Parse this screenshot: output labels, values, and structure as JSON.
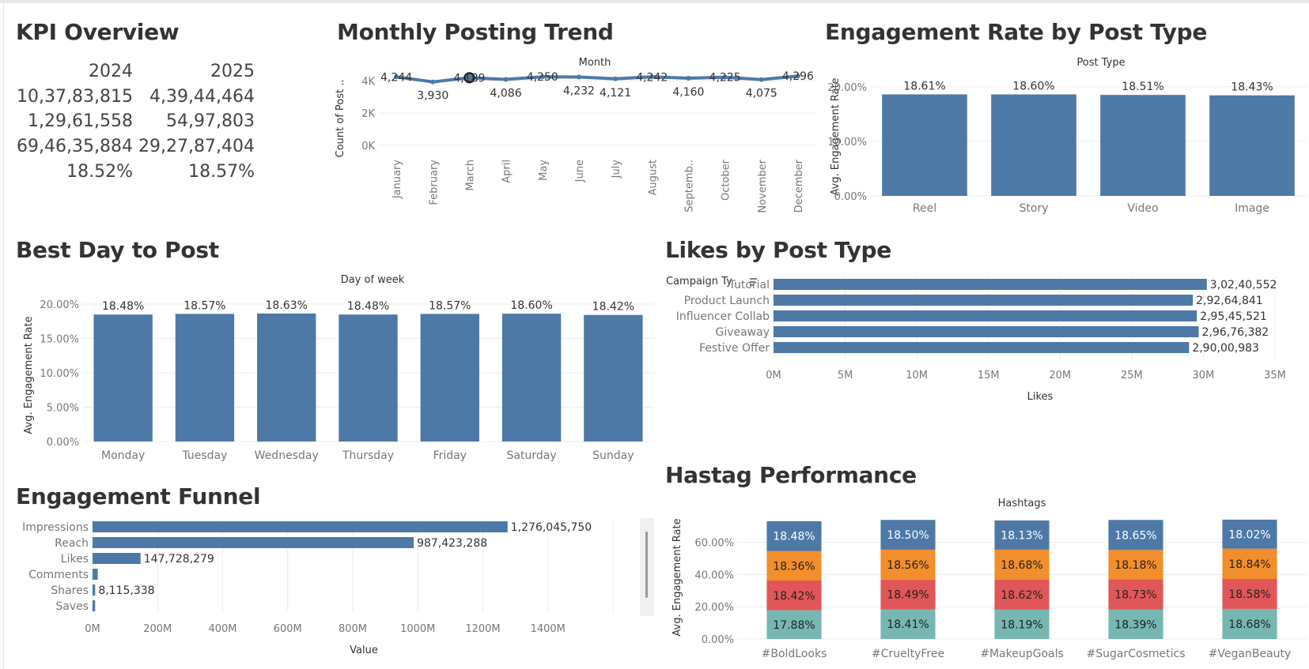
{
  "titles": {
    "kpi": "KPI Overview",
    "monthly": "Monthly Posting Trend",
    "engagement_post_type": "Engagement Rate by Post Type",
    "best_day": "Best Day to Post",
    "likes_post_type": "Likes by Post Type",
    "funnel": "Engagement Funnel",
    "hashtag": "Hastag Performance"
  },
  "kpi": {
    "years": [
      "2024",
      "2025"
    ],
    "rows": [
      [
        "10,37,83,815",
        "4,39,44,464"
      ],
      [
        "1,29,61,558",
        "54,97,803"
      ],
      [
        "69,46,35,884",
        "29,27,87,404"
      ],
      [
        "18.52%",
        "18.57%"
      ]
    ]
  },
  "colors": {
    "bar": "#4e79a7",
    "blue": "#4e79a7",
    "orange": "#f28e2b",
    "red": "#e15759",
    "teal": "#76b7b2",
    "grid": "#ececec",
    "axis_text": "#777777"
  },
  "chart_data": [
    {
      "id": "monthly",
      "type": "line",
      "xlabel_top": "Month",
      "ylabel": "Count of Post ..",
      "categories": [
        "January",
        "February",
        "March",
        "April",
        "May",
        "June",
        "July",
        "August",
        "Septemb..",
        "October",
        "November",
        "December"
      ],
      "values": [
        4244,
        3930,
        4189,
        4086,
        4250,
        4232,
        4121,
        4242,
        4160,
        4225,
        4075,
        4296
      ],
      "labels": [
        "4,244",
        "3,930",
        "4,189",
        "4,086",
        "4,250",
        "4,232",
        "4,121",
        "4,242",
        "4,160",
        "4,225",
        "4,075",
        "4,296"
      ],
      "label_display": [
        "4,244",
        "3,930",
        "4,1‌89",
        "4,086",
        "4,250",
        "4,232",
        "4,121",
        "4,242",
        "4,160",
        "4,225",
        "4,075",
        "4,296"
      ],
      "yticks": [
        "0K",
        "2K",
        "4K"
      ],
      "ylim": [
        0,
        4600
      ],
      "highlight_index": 2
    },
    {
      "id": "engagement_post_type",
      "type": "bar",
      "xlabel_top": "Post Type",
      "ylabel": "Avg. Engagement Rate",
      "categories": [
        "Reel",
        "Story",
        "Video",
        "Image"
      ],
      "values": [
        18.61,
        18.6,
        18.51,
        18.43
      ],
      "labels": [
        "18.61%",
        "18.60%",
        "18.51%",
        "18.43%"
      ],
      "yticks": [
        "0.00%",
        "10.00%",
        "20.00%"
      ],
      "ylim": [
        0,
        22.3
      ]
    },
    {
      "id": "best_day",
      "type": "bar",
      "xlabel_top": "Day of week",
      "ylabel": "Avg. Engagement Rate",
      "categories": [
        "Monday",
        "Tuesday",
        "Wednesday",
        "Thursday",
        "Friday",
        "Saturday",
        "Sunday"
      ],
      "values": [
        18.48,
        18.57,
        18.63,
        18.48,
        18.57,
        18.6,
        18.42
      ],
      "labels": [
        "18.48%",
        "18.57%",
        "18.63%",
        "18.48%",
        "18.57%",
        "18.60%",
        "18.42%"
      ],
      "yticks": [
        "0.00%",
        "5.00%",
        "10.00%",
        "15.00%",
        "20.00%"
      ],
      "ylim": [
        0,
        20.0
      ]
    },
    {
      "id": "likes_post_type",
      "type": "bar",
      "orientation": "horizontal",
      "ylabel_top": "Campaign Ty..",
      "xlabel": "Likes",
      "categories": [
        "Tutorial",
        "Product Launch",
        "Influencer Collab",
        "Giveaway",
        "Festive Offer"
      ],
      "values": [
        30240552,
        29264841,
        29545521,
        29676382,
        29000983
      ],
      "labels": [
        "3,02,40,552",
        "2,92,64,841",
        "2,95,45,521",
        "2,96,76,382",
        "2,90,00,983"
      ],
      "xticks": [
        "0M",
        "5M",
        "10M",
        "15M",
        "20M",
        "25M",
        "30M",
        "35M"
      ],
      "xlim": [
        0,
        35000000
      ]
    },
    {
      "id": "funnel",
      "type": "bar",
      "orientation": "horizontal",
      "xlabel": "Value",
      "categories": [
        "Impressions",
        "Reach",
        "Likes",
        "Comments",
        "Shares",
        "Saves"
      ],
      "values": [
        1276045750,
        987423288,
        147728279,
        16000000,
        8115338,
        8000000
      ],
      "labels": [
        "1,276,045,750",
        "987,423,288",
        "147,728,279",
        "",
        "8,115,338",
        ""
      ],
      "xticks": [
        "0M",
        "200M",
        "400M",
        "600M",
        "800M",
        "1000M",
        "1200M",
        "1400M"
      ],
      "xlim": [
        0,
        1600000000
      ]
    },
    {
      "id": "hashtag",
      "type": "bar",
      "stacked": true,
      "xlabel_top": "Hashtags",
      "ylabel": "Avg. Engagement Rate",
      "categories": [
        "#BoldLooks",
        "#CrueltyFree",
        "#MakeupGoals",
        "#SugarCosmetics",
        "#VeganBeauty"
      ],
      "series": [
        {
          "values": [
            17.88,
            18.41,
            18.19,
            18.39,
            18.68
          ],
          "labels": [
            "17.88%",
            "18.41%",
            "18.19%",
            "18.39%",
            "18.68%"
          ],
          "color": "#76b7b2"
        },
        {
          "values": [
            18.42,
            18.49,
            18.62,
            18.73,
            18.58
          ],
          "labels": [
            "18.42%",
            "18.49%",
            "18.62%",
            "18.73%",
            "18.58%"
          ],
          "color": "#e15759"
        },
        {
          "values": [
            18.36,
            18.56,
            18.68,
            18.18,
            18.84
          ],
          "labels": [
            "18.36%",
            "18.56%",
            "18.68%",
            "18.18%",
            "18.84%"
          ],
          "color": "#f28e2b"
        },
        {
          "values": [
            18.48,
            18.5,
            18.13,
            18.65,
            18.02
          ],
          "labels": [
            "18.48%",
            "18.50%",
            "18.13%",
            "18.65%",
            "18.02%"
          ],
          "color": "#4e79a7"
        }
      ],
      "yticks": [
        "0.00%",
        "20.00%",
        "40.00%",
        "60.00%"
      ],
      "ylim": [
        0,
        78
      ]
    }
  ]
}
